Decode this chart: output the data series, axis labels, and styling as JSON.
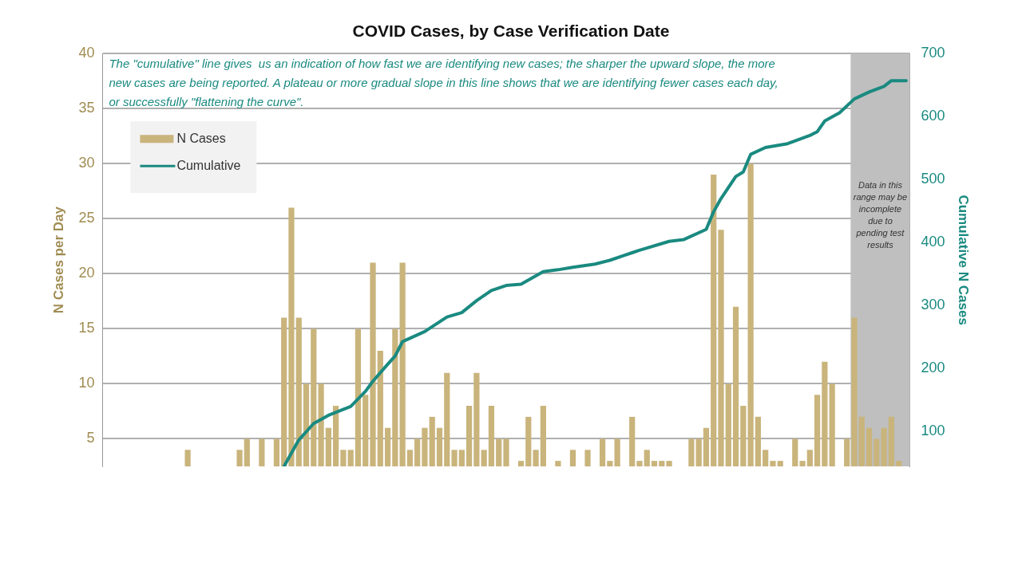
{
  "chart_data": {
    "type": "bar",
    "title": "COVID Cases, by Case Verification Date",
    "ylabel": "N Cases per Day",
    "y2label": "Cumulative N Cases",
    "annotations": [
      "The \"cumulative\" line gives  us an indication of how fast we are identifying new cases; the sharper the upward slope, the more new cases are being reported. A plateau or more gradual slope in this line shows that we are identifying fewer cases each day, or successfully \"flattening the curve\".",
      "Data in this range may be incomplete due to pending test results"
    ],
    "categories": [
      null,
      null,
      null,
      null,
      null,
      null,
      null,
      null,
      null,
      null,
      null,
      null,
      null,
      null,
      null,
      null,
      null,
      null,
      null,
      null,
      null,
      null,
      null,
      null,
      null,
      null,
      null,
      null,
      null,
      null,
      null,
      null,
      null,
      null,
      null,
      null,
      null,
      null,
      null,
      null,
      null,
      null,
      null,
      null,
      null,
      null,
      null,
      null,
      null,
      null,
      null,
      null,
      null,
      null,
      null,
      null,
      null,
      null,
      null,
      null,
      null,
      null,
      null,
      null,
      null,
      null,
      null,
      null,
      null,
      null,
      null,
      null,
      null,
      null,
      null,
      null,
      null,
      null,
      null,
      null,
      null,
      null,
      null,
      null,
      null,
      null,
      null,
      null,
      null,
      null,
      null,
      null,
      null,
      null,
      null,
      null,
      null,
      null,
      null,
      null,
      null,
      null,
      null,
      null,
      null,
      null,
      null,
      null,
      null
    ],
    "series": [
      {
        "name": "N Cases",
        "color": "#c9b47c",
        "values": [
          null,
          null,
          null,
          null,
          null,
          null,
          null,
          null,
          null,
          null,
          null,
          4,
          null,
          null,
          null,
          null,
          null,
          null,
          4,
          5,
          null,
          5,
          null,
          5,
          16,
          26,
          16,
          10,
          15,
          10,
          6,
          8,
          4,
          4,
          15,
          9,
          21,
          13,
          6,
          15,
          21,
          4,
          5,
          6,
          7,
          6,
          11,
          4,
          4,
          8,
          11,
          4,
          8,
          5,
          5,
          null,
          3,
          7,
          4,
          8,
          null,
          3,
          null,
          4,
          null,
          4,
          null,
          5,
          3,
          5,
          null,
          7,
          3,
          4,
          3,
          3,
          3,
          null,
          null,
          5,
          5,
          6,
          29,
          24,
          10,
          17,
          8,
          30,
          7,
          4,
          3,
          3,
          null,
          5,
          3,
          4,
          9,
          12,
          10,
          null,
          5,
          16,
          7,
          6,
          5,
          6,
          7,
          3,
          null
        ]
      },
      {
        "name": "Cumulative",
        "type": "line",
        "axis": "y2",
        "color": "#1a8a80",
        "values": [
          null,
          null,
          null,
          null,
          null,
          null,
          null,
          null,
          null,
          null,
          null,
          null,
          null,
          null,
          null,
          null,
          null,
          null,
          null,
          null,
          null,
          null,
          null,
          null,
          45,
          null,
          87,
          null,
          113,
          null,
          126,
          null,
          null,
          140,
          null,
          164,
          180,
          null,
          207,
          220,
          243,
          null,
          null,
          259,
          null,
          null,
          282,
          null,
          289,
          null,
          308,
          null,
          324,
          null,
          332,
          null,
          334,
          null,
          null,
          354,
          null,
          357,
          null,
          361,
          null,
          null,
          366,
          null,
          372,
          null,
          380,
          384,
          388,
          null,
          null,
          null,
          402,
          null,
          405,
          null,
          null,
          421,
          449,
          470,
          null,
          505,
          512,
          540,
          null,
          551,
          null,
          null,
          557,
          null,
          null,
          570,
          576,
          593,
          null,
          606,
          null,
          628,
          null,
          639,
          null,
          648,
          657,
          null,
          657
        ]
      }
    ],
    "ylim": [
      2.5,
      40
    ],
    "yticks": [
      5,
      10,
      15,
      20,
      25,
      30,
      35,
      40
    ],
    "y2lim": [
      45,
      700
    ],
    "y2ticks": [
      100,
      200,
      300,
      400,
      500,
      600,
      700
    ],
    "grid": "y",
    "legend": "top left",
    "tick_labels": "y",
    "marker": "none",
    "line_style": "solid"
  }
}
